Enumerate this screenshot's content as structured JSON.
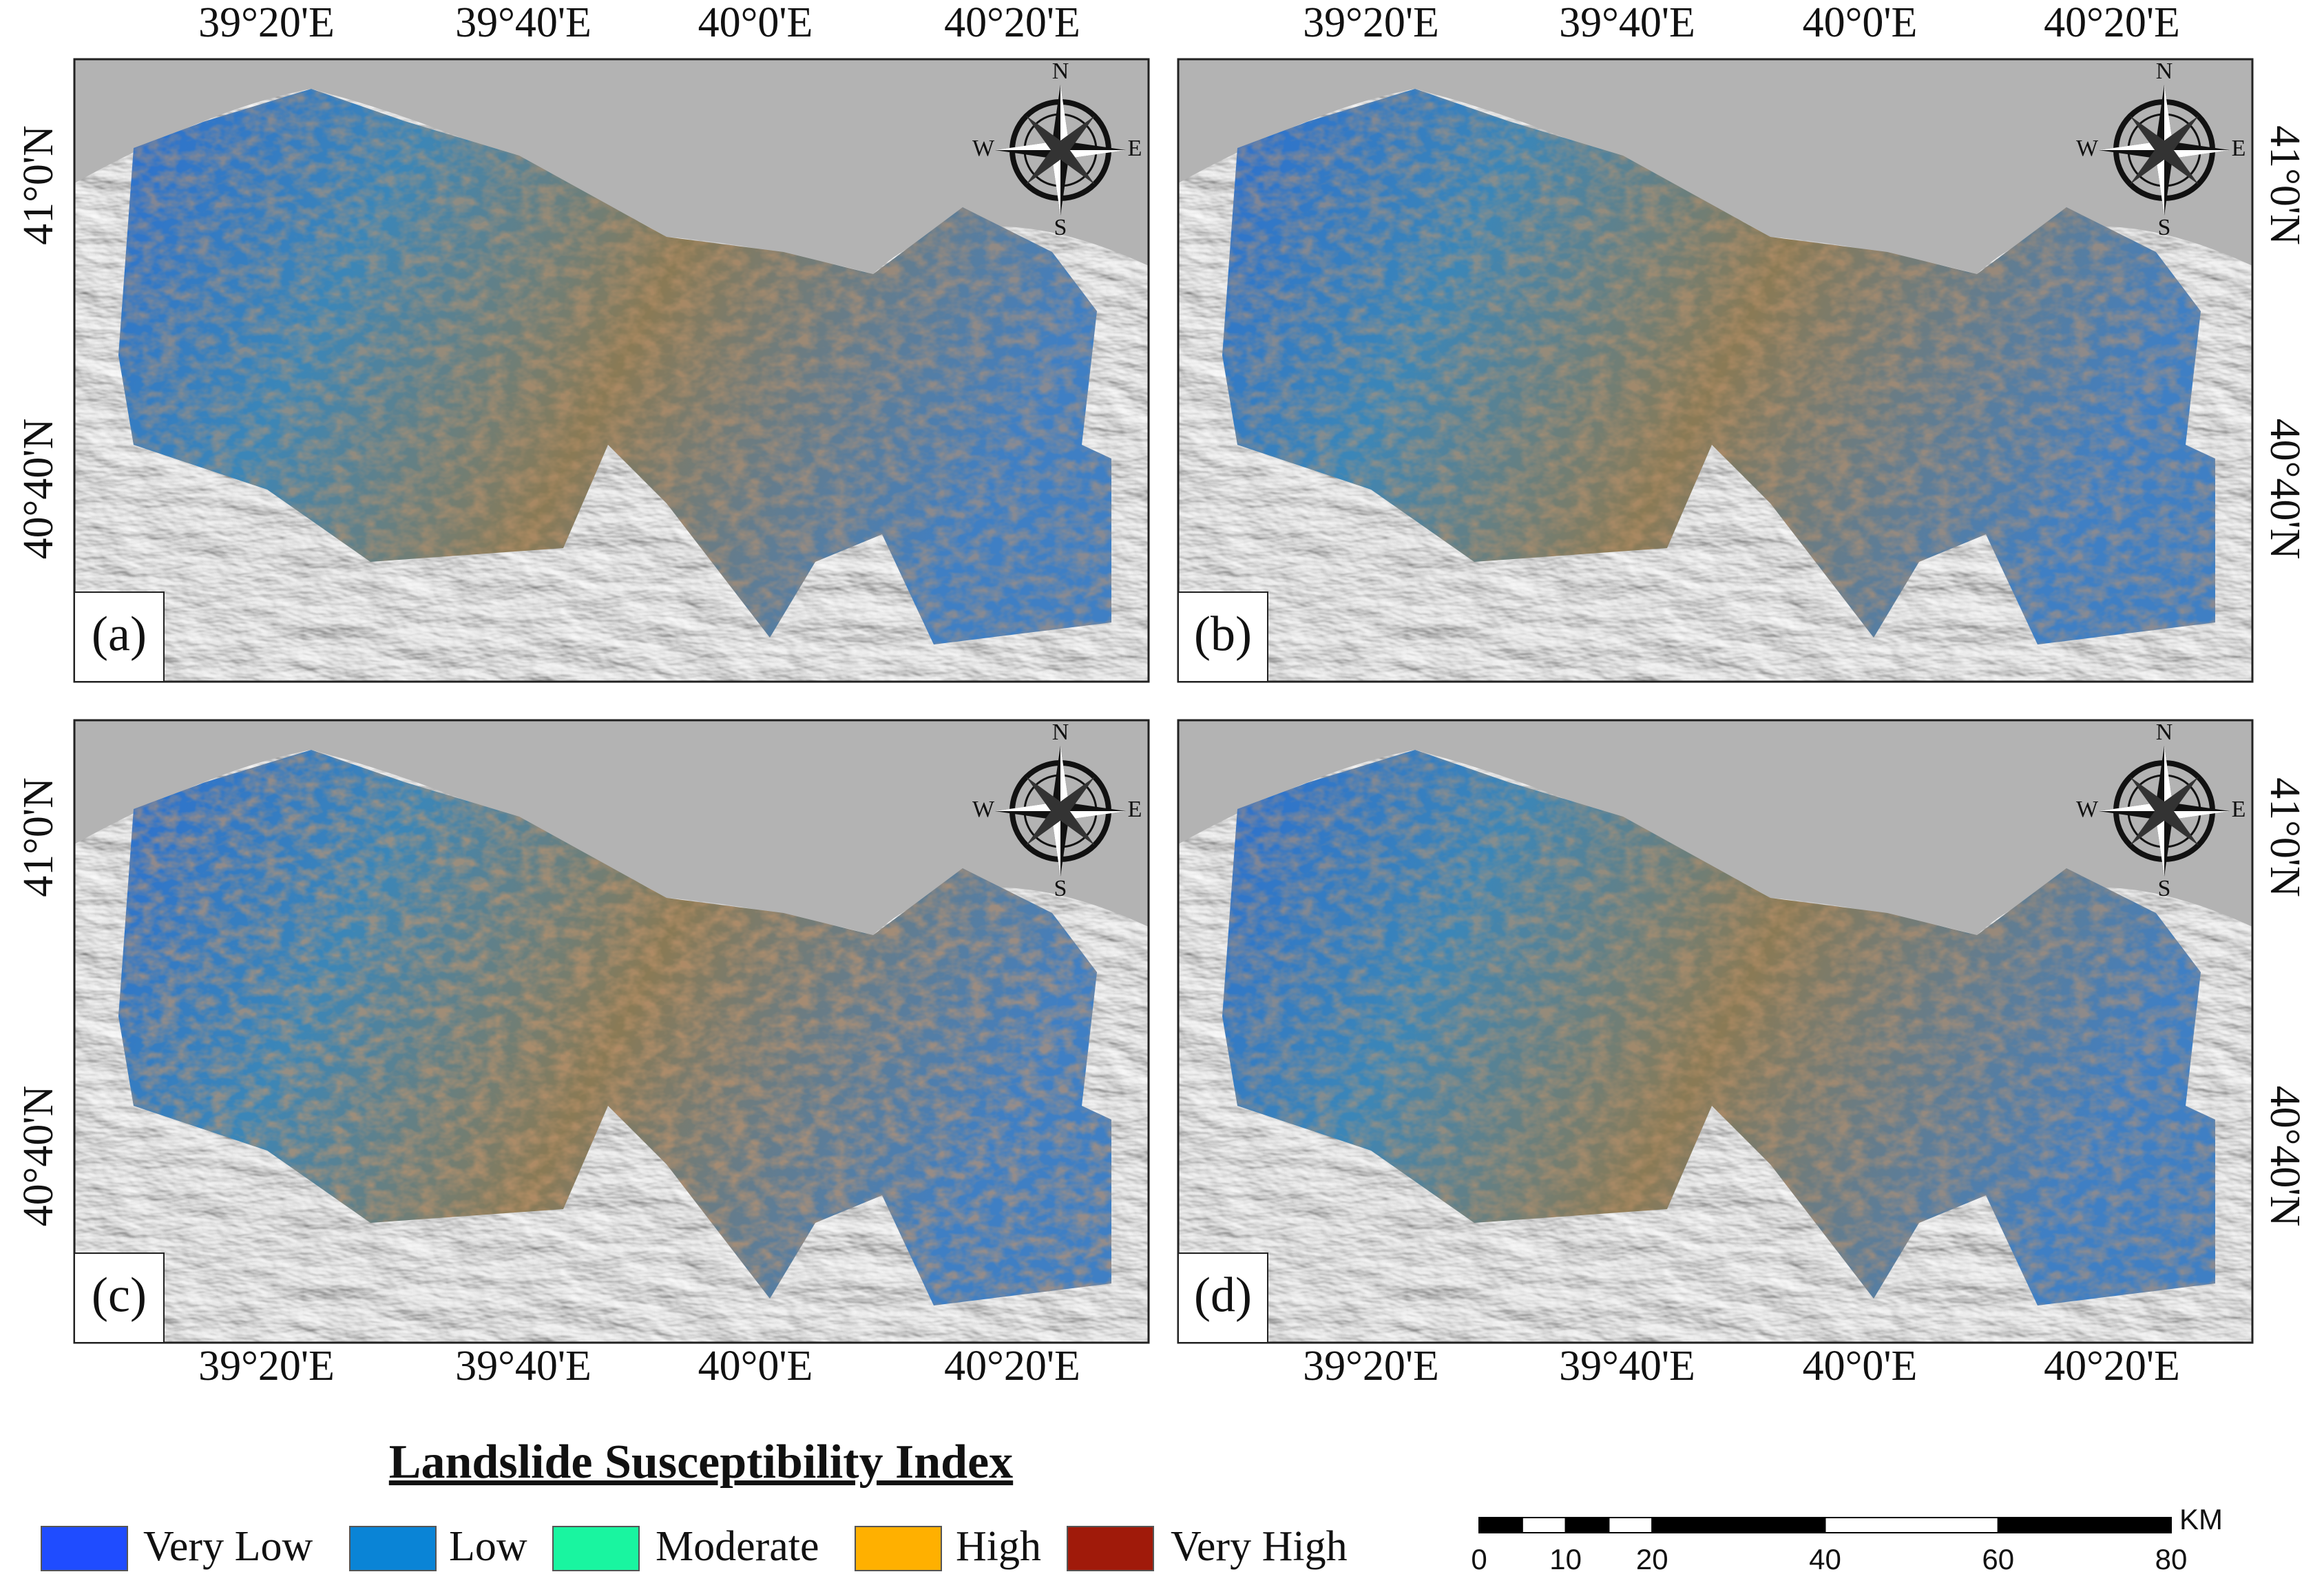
{
  "panels": [
    {
      "label": "(a)"
    },
    {
      "label": "(b)"
    },
    {
      "label": "(c)"
    },
    {
      "label": "(d)"
    }
  ],
  "longitude_labels": [
    "39°20'E",
    "39°40'E",
    "40°0'E",
    "40°20'E"
  ],
  "latitude_labels": [
    "41°0'N",
    "40°40'N"
  ],
  "compass": {
    "north": "N",
    "south": "S",
    "east": "E",
    "west": "W"
  },
  "legend": {
    "title": "Landslide Susceptibility Index",
    "items": [
      {
        "label": "Very Low",
        "color": "#1f4cff"
      },
      {
        "label": "Low",
        "color": "#0a84d6"
      },
      {
        "label": "Moderate",
        "color": "#19f5a0"
      },
      {
        "label": "High",
        "color": "#ffb000"
      },
      {
        "label": "Very High",
        "color": "#a01a0a"
      }
    ]
  },
  "scale_bar": {
    "unit": "KM",
    "ticks": [
      0,
      10,
      20,
      40,
      60,
      80
    ]
  }
}
